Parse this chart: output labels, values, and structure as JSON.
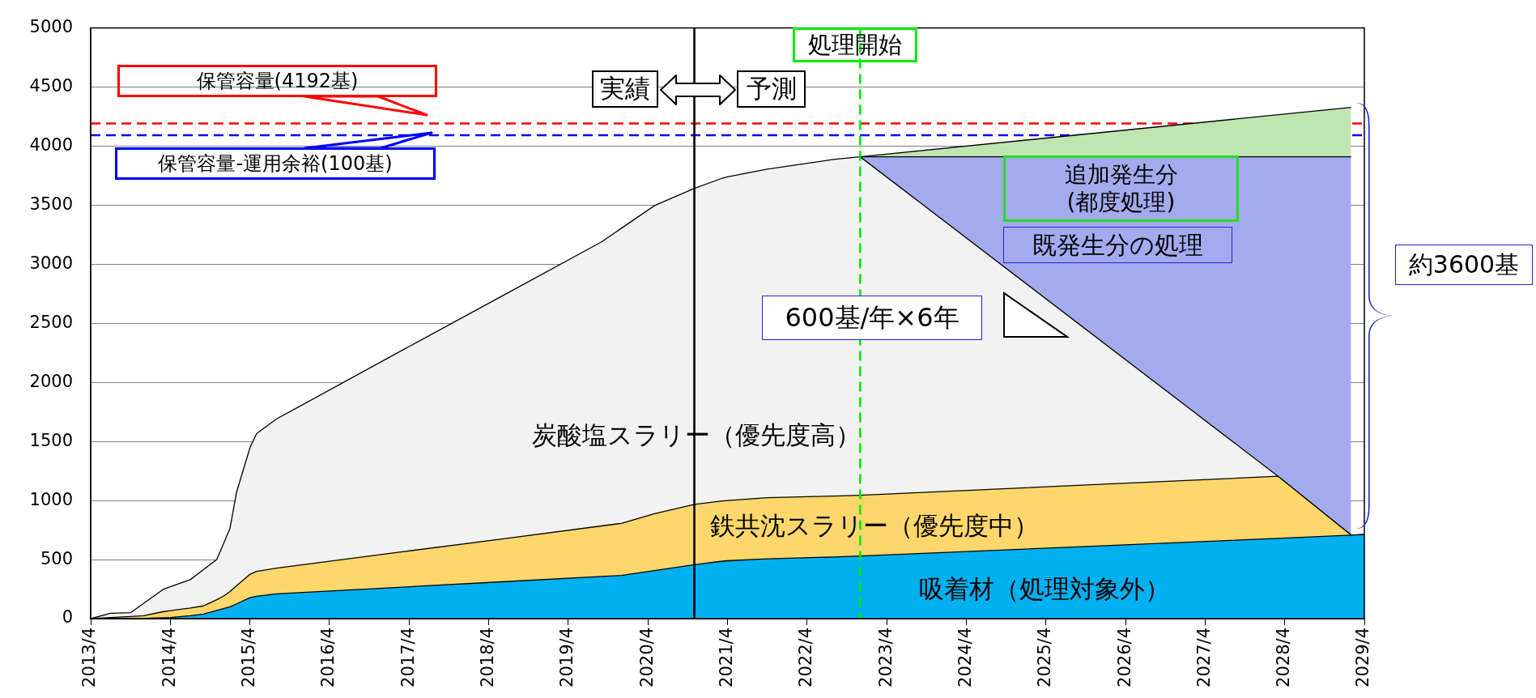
{
  "chart_data": {
    "type": "area",
    "series": [
      {
        "name": "吸着材（処理対象外）",
        "color": "#00b0f0",
        "values": [
          0,
          1,
          2,
          3,
          8,
          10,
          25,
          39,
          70,
          85,
          100,
          125,
          177,
          190,
          210,
          267,
          312,
          357,
          366,
          407,
          457,
          485,
          490,
          506,
          522,
          530,
          680,
          707,
          712
        ]
      },
      {
        "name": "鉄共沈スラリー（優先度中）",
        "color": "#fdd76b",
        "values": [
          0,
          10,
          18,
          25,
          60,
          68,
          90,
          108,
          160,
          190,
          230,
          280,
          375,
          400,
          427,
          566,
          675,
          785,
          807,
          889,
          967,
          995,
          1000,
          1024,
          1038,
          1045,
          1205,
          707,
          712
        ]
      },
      {
        "name": "炭酸塩スラリー（優先度高）",
        "color": "#f2f2f2",
        "values": [
          0,
          45,
          50,
          130,
          250,
          270,
          330,
          415,
          500,
          630,
          765,
          1073,
          1445,
          1567,
          1690,
          2273,
          2731,
          3189,
          3305,
          3497,
          3643,
          3724,
          3740,
          3806,
          3887,
          3910,
          1205,
          707,
          712
        ]
      },
      {
        "name": "既発生分の処理",
        "color": "#a3abee",
        "x": [
          "2022-12",
          "2028-03",
          "2029-02"
        ],
        "values": [
          3910,
          3910,
          3910
        ]
      },
      {
        "name": "追加発生分\n(都度処理)",
        "color": "#bfe6b0",
        "x": [
          "2022-12",
          "2029-02"
        ],
        "values": [
          3910,
          4328
        ]
      }
    ],
    "x": [
      "2013-04",
      "2013-07",
      "2013-10",
      "2013-12",
      "2014-03",
      "2014-04",
      "2014-07",
      "2014-09",
      "2014-11",
      "2014-12",
      "2015-01",
      "2015-02",
      "2015-04",
      "2015-05",
      "2015-08",
      "2017-03",
      "2018-06",
      "2019-09",
      "2019-12",
      "2020-05",
      "2020-11",
      "2021-03",
      "2021-04",
      "2021-10",
      "2022-08",
      "2022-12",
      "2028-03",
      "2029-02",
      "2029-04"
    ],
    "xlim": [
      "2013-04",
      "2029-04"
    ],
    "xticks": [
      {
        "value": "2013-04",
        "label": "2013/4"
      },
      {
        "value": "2014-04",
        "label": "2014/4"
      },
      {
        "value": "2015-04",
        "label": "2015/4"
      },
      {
        "value": "2016-04",
        "label": "2016/4"
      },
      {
        "value": "2017-04",
        "label": "2017/4"
      },
      {
        "value": "2018-04",
        "label": "2018/4"
      },
      {
        "value": "2019-04",
        "label": "2019/4"
      },
      {
        "value": "2020-04",
        "label": "2020/4"
      },
      {
        "value": "2021-04",
        "label": "2021/4"
      },
      {
        "value": "2022-04",
        "label": "2022/4"
      },
      {
        "value": "2023-04",
        "label": "2023/4"
      },
      {
        "value": "2024-04",
        "label": "2024/4"
      },
      {
        "value": "2025-04",
        "label": "2025/4"
      },
      {
        "value": "2026-04",
        "label": "2026/4"
      },
      {
        "value": "2027-04",
        "label": "2027/4"
      },
      {
        "value": "2028-04",
        "label": "2028/4"
      },
      {
        "value": "2029-04",
        "label": "2029/4"
      }
    ],
    "ylim": [
      0,
      5000
    ],
    "yticks": [
      0,
      500,
      1000,
      1500,
      2000,
      2500,
      3000,
      3500,
      4000,
      4500,
      5000
    ],
    "grid": "y",
    "ref_lines": [
      {
        "axis": "y",
        "value": 4192,
        "label": "保管容量(4192基)",
        "color": "#ff0000",
        "line_style": "dashed"
      },
      {
        "axis": "y",
        "value": 4092,
        "label": "保管容量-運用余裕(100基)",
        "color": "#0000ff",
        "line_style": "dashed"
      },
      {
        "axis": "x",
        "value": "2020-11",
        "label": null,
        "color": "#000000",
        "line_style": "solid"
      },
      {
        "axis": "x",
        "value": "2022-12",
        "label": "処理開始",
        "color": "#00ee00",
        "line_style": "dashed"
      }
    ],
    "annotations": [
      "実績",
      "予測",
      "600基/年×6年",
      "約3600基"
    ]
  }
}
